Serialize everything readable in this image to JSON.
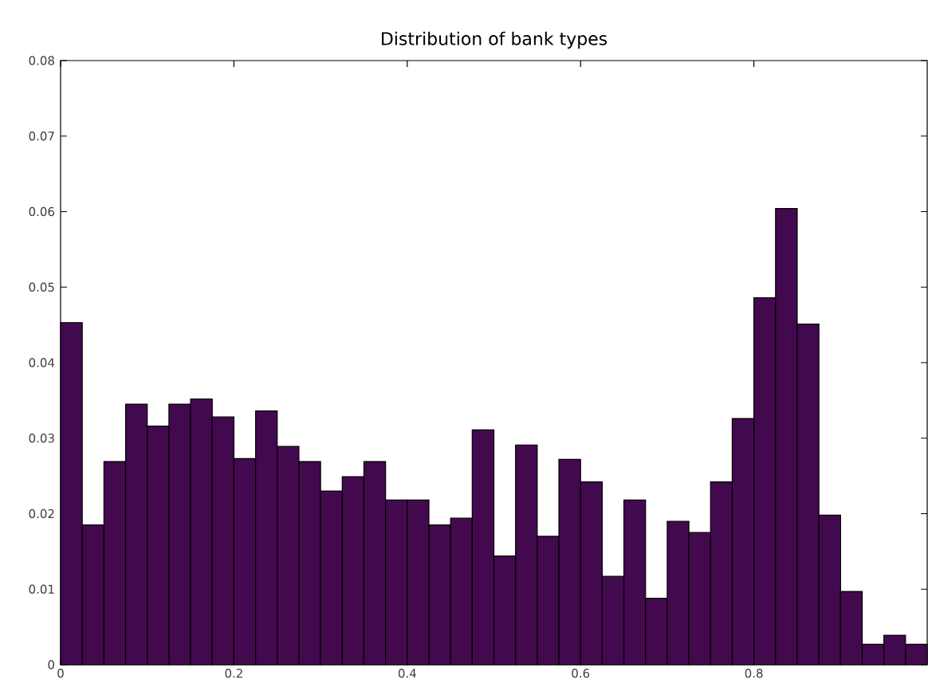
{
  "chart_data": {
    "type": "histogram",
    "title": "Distribution of bank types",
    "bins": [
      0,
      0.025,
      0.05,
      0.075,
      0.1,
      0.125,
      0.15,
      0.175,
      0.2,
      0.225,
      0.25,
      0.275,
      0.3,
      0.325,
      0.35,
      0.375,
      0.4,
      0.425,
      0.45,
      0.475,
      0.5,
      0.525,
      0.55,
      0.575,
      0.6,
      0.625,
      0.65,
      0.675,
      0.7,
      0.725,
      0.75,
      0.775,
      0.8,
      0.825,
      0.85,
      0.875,
      0.9,
      0.925,
      0.95,
      0.975,
      1
    ],
    "values": [
      0.0453,
      0.0185,
      0.0269,
      0.0345,
      0.0316,
      0.0345,
      0.0352,
      0.0328,
      0.0273,
      0.0336,
      0.0289,
      0.0269,
      0.023,
      0.0249,
      0.0269,
      0.0218,
      0.0218,
      0.0185,
      0.0194,
      0.0311,
      0.0144,
      0.0291,
      0.017,
      0.0272,
      0.0242,
      0.0117,
      0.0218,
      0.0088,
      0.019,
      0.0175,
      0.0242,
      0.0326,
      0.0486,
      0.0604,
      0.0451,
      0.0198,
      0.0097,
      0.0027,
      0.0039,
      0.0027
    ],
    "color": "#43094f",
    "xlim": [
      0,
      1
    ],
    "ylim": [
      0,
      0.08
    ],
    "xticks": [
      0,
      0.2,
      0.4,
      0.6,
      0.8
    ],
    "yticks": [
      0,
      0.01,
      0.02,
      0.03,
      0.04,
      0.05,
      0.06,
      0.07,
      0.08
    ],
    "tick_labels": "xy"
  }
}
